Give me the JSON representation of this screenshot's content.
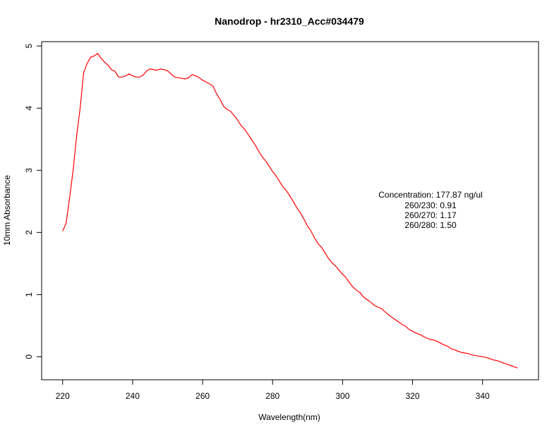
{
  "chart_data": {
    "type": "line",
    "title": "Nanodrop - hr2310_Acc#034479",
    "xlabel": "Wavelength(nm)",
    "ylabel": "10mm Absorbance",
    "xlim": [
      214,
      356
    ],
    "ylim": [
      -0.37,
      5.07
    ],
    "x_ticks": [
      220,
      240,
      260,
      280,
      300,
      320,
      340
    ],
    "y_ticks": [
      0,
      1,
      2,
      3,
      4,
      5
    ],
    "grid": false,
    "legend": "none",
    "series": [
      {
        "color": "#ff0000",
        "x": [
          220,
          221,
          222,
          223,
          224,
          225,
          226,
          227,
          228,
          229,
          230,
          231,
          232,
          233,
          234,
          235,
          236,
          237,
          238,
          239,
          240,
          241,
          242,
          243,
          244,
          245,
          246,
          247,
          248,
          249,
          250,
          251,
          252,
          253,
          254,
          255,
          256,
          257,
          258,
          259,
          260,
          261,
          262,
          263,
          264,
          265,
          266,
          267,
          268,
          269,
          270,
          271,
          272,
          273,
          274,
          275,
          276,
          277,
          278,
          279,
          280,
          281,
          282,
          283,
          284,
          285,
          286,
          287,
          288,
          289,
          290,
          291,
          292,
          293,
          294,
          295,
          296,
          297,
          298,
          299,
          300,
          301,
          302,
          303,
          304,
          305,
          306,
          307,
          308,
          309,
          310,
          311,
          312,
          313,
          314,
          315,
          316,
          317,
          318,
          319,
          320,
          321,
          322,
          323,
          324,
          325,
          326,
          327,
          328,
          329,
          330,
          331,
          332,
          333,
          334,
          335,
          336,
          337,
          338,
          339,
          340,
          341,
          342,
          343,
          344,
          345,
          346,
          347,
          348,
          349,
          350
        ],
        "y": [
          2.02,
          2.15,
          2.56,
          3.0,
          3.55,
          4.0,
          4.57,
          4.72,
          4.82,
          4.84,
          4.88,
          4.8,
          4.74,
          4.69,
          4.62,
          4.59,
          4.5,
          4.5,
          4.52,
          4.55,
          4.52,
          4.5,
          4.5,
          4.53,
          4.6,
          4.63,
          4.62,
          4.61,
          4.63,
          4.62,
          4.6,
          4.55,
          4.5,
          4.49,
          4.48,
          4.47,
          4.49,
          4.54,
          4.52,
          4.49,
          4.45,
          4.42,
          4.39,
          4.35,
          4.23,
          4.14,
          4.03,
          3.98,
          3.95,
          3.88,
          3.81,
          3.72,
          3.66,
          3.58,
          3.49,
          3.41,
          3.31,
          3.22,
          3.15,
          3.07,
          2.98,
          2.91,
          2.82,
          2.73,
          2.67,
          2.58,
          2.49,
          2.39,
          2.31,
          2.21,
          2.1,
          2.02,
          1.91,
          1.82,
          1.76,
          1.67,
          1.58,
          1.51,
          1.46,
          1.39,
          1.33,
          1.27,
          1.19,
          1.12,
          1.07,
          1.03,
          0.96,
          0.92,
          0.88,
          0.83,
          0.8,
          0.78,
          0.73,
          0.68,
          0.64,
          0.6,
          0.56,
          0.52,
          0.49,
          0.44,
          0.41,
          0.38,
          0.36,
          0.33,
          0.3,
          0.28,
          0.27,
          0.25,
          0.22,
          0.19,
          0.17,
          0.13,
          0.11,
          0.09,
          0.07,
          0.06,
          0.05,
          0.03,
          0.02,
          0.01,
          0.0,
          -0.01,
          -0.03,
          -0.05,
          -0.06,
          -0.08,
          -0.1,
          -0.12,
          -0.14,
          -0.16,
          -0.18
        ]
      }
    ],
    "annotations": [
      "Concentration: 177.87 ng/ul",
      "260/230: 0.91",
      "260/270: 1.17",
      "260/280: 1.50"
    ]
  }
}
